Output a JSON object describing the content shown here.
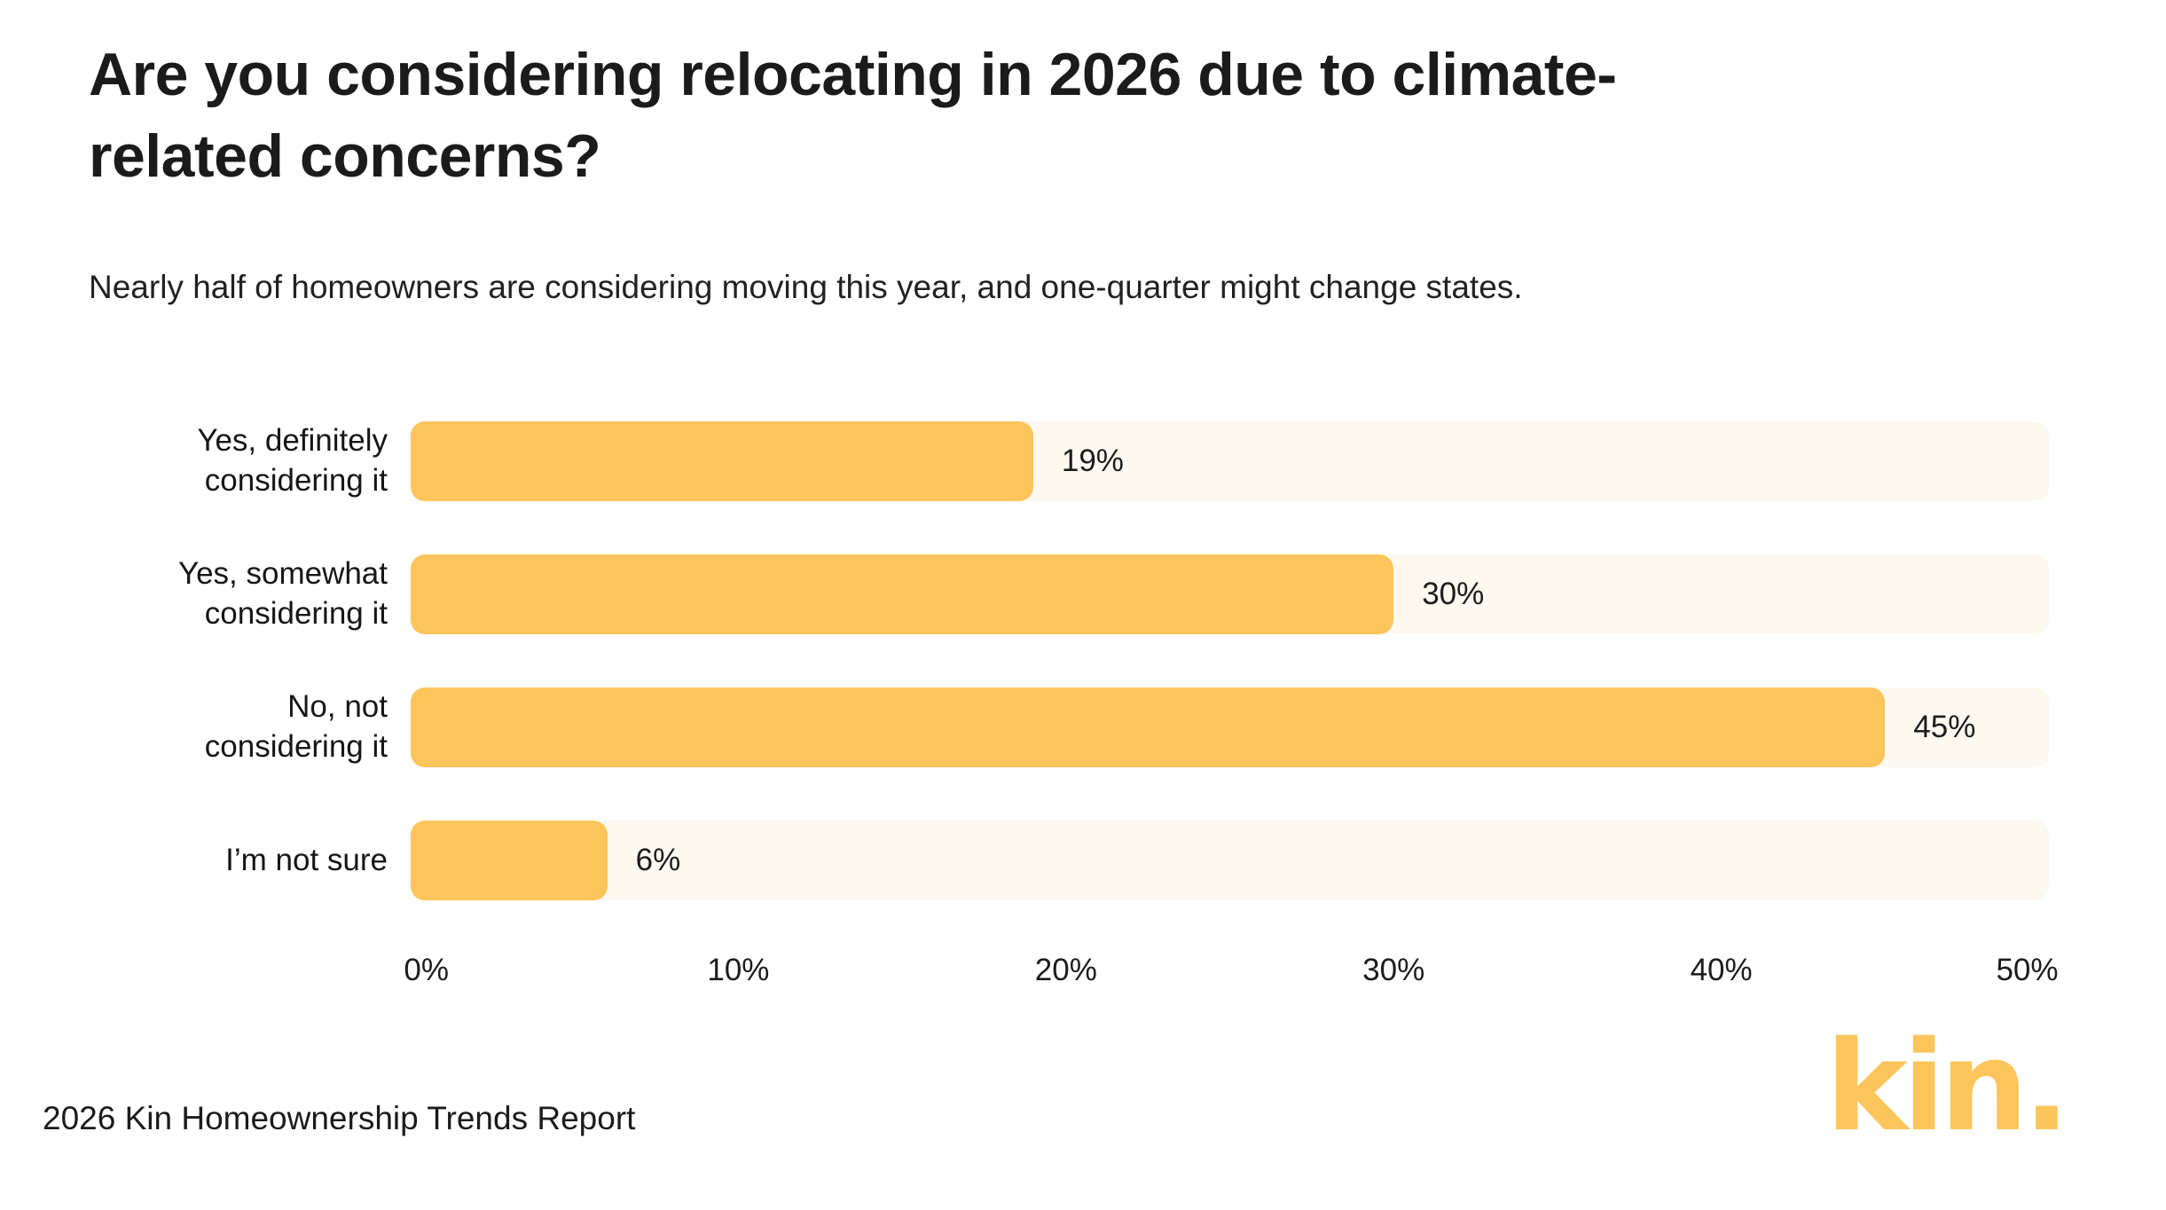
{
  "page": {
    "background": "#FFFFFF"
  },
  "header": {
    "title": "Are you considering relocating in 2026 due to climate-related concerns?",
    "subtitle": "Nearly half of homeowners are considering moving this year, and one-quarter might change states."
  },
  "chart_data": {
    "type": "bar",
    "orientation": "horizontal",
    "title": "Are you considering relocating in 2026 due to climate-related concerns?",
    "subtitle": "Nearly half of homeowners are considering moving this year, and one-quarter might change states.",
    "categories": [
      "Yes, definitely considering it",
      "Yes, somewhat considering it",
      "No, not considering it",
      "I’m not sure"
    ],
    "category_lines": [
      [
        "Yes, definitely",
        "considering it"
      ],
      [
        "Yes, somewhat",
        "considering it"
      ],
      [
        "No, not",
        "considering it"
      ],
      [
        "I’m not sure"
      ]
    ],
    "values": [
      19,
      30,
      45,
      6
    ],
    "value_labels": [
      "19%",
      "30%",
      "45%",
      "6%"
    ],
    "xlim": [
      0,
      50
    ],
    "x_tick_labels": [
      "0%",
      "10%",
      "20%",
      "30%",
      "40%",
      "50%"
    ],
    "grid": false,
    "legend": false,
    "bar_color": "#FCC55C",
    "track_color": "#FDF8F0"
  },
  "footer": {
    "source": "2026 Kin Homeownership Trends Report",
    "logo_text": "kin."
  }
}
